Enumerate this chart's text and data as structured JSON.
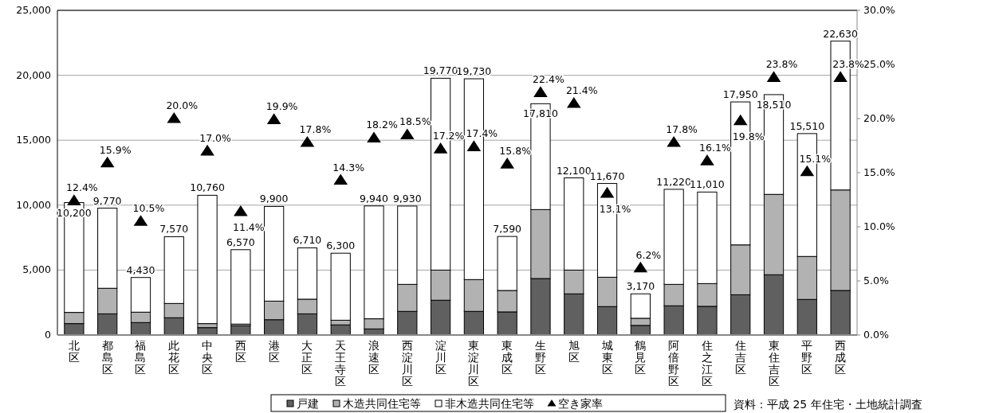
{
  "chart_data": {
    "type": "bar",
    "stacked": true,
    "categories": [
      "北区",
      "都島区",
      "福島区",
      "此花区",
      "中央区",
      "西区",
      "港区",
      "大正区",
      "天王寺区",
      "浪速区",
      "西淀川区",
      "淀川区",
      "東淀川区",
      "東成区",
      "生野区",
      "旭区",
      "城東区",
      "鶴見区",
      "阿倍野区",
      "住之江区",
      "住吉区",
      "東住吉区",
      "平野区",
      "西成区"
    ],
    "series": [
      {
        "name": "戸建",
        "color": "#606060",
        "values": [
          880,
          1630,
          960,
          1330,
          570,
          710,
          1180,
          1630,
          780,
          470,
          1820,
          2680,
          1820,
          1780,
          4350,
          3170,
          2190,
          740,
          2250,
          2210,
          3100,
          4640,
          2740,
          3430
        ]
      },
      {
        "name": "木造共同住宅等",
        "color": "#b2b2b2",
        "values": [
          860,
          1970,
          800,
          1100,
          310,
          130,
          1430,
          1130,
          360,
          780,
          2080,
          2320,
          2450,
          1650,
          5310,
          1830,
          2260,
          550,
          1650,
          1750,
          3840,
          6190,
          3310,
          7740
        ]
      },
      {
        "name": "非木造共同住宅等",
        "color": "#ffffff",
        "values": [
          8460,
          6170,
          2670,
          5140,
          9880,
          5730,
          7290,
          3950,
          5160,
          8690,
          6030,
          14770,
          15460,
          4160,
          8150,
          7100,
          7220,
          1880,
          7320,
          7050,
          11010,
          7680,
          9460,
          11460
        ]
      },
      {
        "name": "空き家率",
        "type": "scatter",
        "axis": "y2",
        "marker": "triangle",
        "color": "#000000",
        "values": [
          12.4,
          15.9,
          10.5,
          20.0,
          17.0,
          11.4,
          19.9,
          17.8,
          14.3,
          18.2,
          18.5,
          17.2,
          17.4,
          15.8,
          22.4,
          21.4,
          13.1,
          6.2,
          17.8,
          16.1,
          19.8,
          23.8,
          15.1,
          23.8
        ],
        "value_labels": [
          "12.4%",
          "15.9%",
          "10.5%",
          "20.0%",
          "17.0%",
          "11.4%",
          "19.9%",
          "17.8%",
          "14.3%",
          "18.2%",
          "18.5%",
          "17.2%",
          "17.4%",
          "15.8%",
          "22.4%",
          "21.4%",
          "13.1%",
          "6.2%",
          "17.8%",
          "16.1%",
          "19.8%",
          "23.8%",
          "15.1%",
          "23.8%"
        ]
      }
    ],
    "totals": [
      "10,200",
      "9,770",
      "4,430",
      "7,570",
      "10,760",
      "6,570",
      "9,900",
      "6,710",
      "6,300",
      "9,940",
      "9,930",
      "19,770",
      "19,730",
      "7,590",
      "17,810",
      "12,100",
      "11,670",
      "3,170",
      "11,220",
      "11,010",
      "17,950",
      "18,510",
      "15,510",
      "22,630"
    ],
    "ylim": [
      0,
      25000
    ],
    "yticks": [
      0,
      {
        "value": 5000,
        "label": "5,000"
      },
      {
        "value": 10000,
        "label": "10,000"
      },
      {
        "value": 15000,
        "label": "15,000"
      },
      {
        "value": 20000,
        "label": "20,000"
      },
      {
        "value": 25000,
        "label": "25,000"
      }
    ],
    "y2lim": [
      0,
      30
    ],
    "y2ticks": [
      {
        "value": 0,
        "label": "0.0%"
      },
      {
        "value": 5,
        "label": "5.0%"
      },
      {
        "value": 10,
        "label": "10.0%"
      },
      {
        "value": 15,
        "label": "15.0%"
      },
      {
        "value": 20,
        "label": "20.0%"
      },
      {
        "value": 25,
        "label": "25.0%"
      },
      {
        "value": 30,
        "label": "30.0%"
      }
    ],
    "grid": "y",
    "legend": "bottom",
    "annotations": [
      "資料：平成 25 年住宅・土地統計調査"
    ]
  }
}
